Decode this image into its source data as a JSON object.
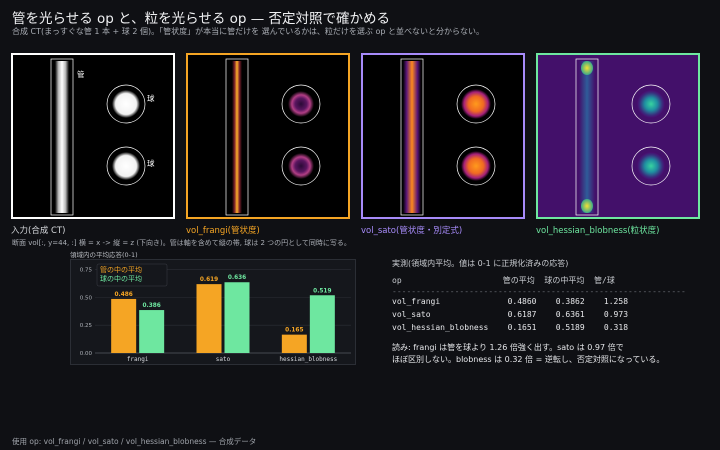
{
  "header": {
    "title": "管を光らせる op と、粒を光らせる op — 否定対照で確かめる",
    "subtitle": "合成 CT(まっすぐな管 1 本 + 球 2 個)。「管状度」が本当に管だけを 選んでいるかは、粒だけを選ぶ op と並べないと分からない。"
  },
  "panels": [
    {
      "label": "入力(合成 CT)",
      "border": "#ffffff",
      "color": "#ffffff",
      "annot_tube": "管",
      "annot_ball": "球",
      "annot_ball2": "球"
    },
    {
      "label": "vol_frangi(管状度)",
      "border": "#f5a524",
      "color": "#f5a524"
    },
    {
      "label": "vol_sato(管状度・別定式)",
      "border": "#a78bfa",
      "color": "#a78bfa"
    },
    {
      "label": "vol_hessian_blobness(粒状度)",
      "border": "#6ee7a0",
      "color": "#6ee7a0"
    }
  ],
  "note": "断面 vol[:, y=44, :]  横 = x ->   縦 = z (下向き)。管は軸を含めて縦の帯, 球は 2 つの円として同時に写る。",
  "chart_data": {
    "type": "bar",
    "title": "領域内の平均応答(0-1)",
    "categories": [
      "frangi",
      "sato",
      "hessian_blobness"
    ],
    "series": [
      {
        "name": "管の中の平均",
        "color": "#f5a524",
        "values": [
          0.486,
          0.619,
          0.165
        ]
      },
      {
        "name": "球の中の平均",
        "color": "#6ee7a0",
        "values": [
          0.386,
          0.636,
          0.519
        ]
      }
    ],
    "yticks": [
      "0.00",
      "0.25",
      "0.50",
      "0.75"
    ],
    "ylim": [
      0,
      0.8
    ],
    "grid": true,
    "legend": "top-left"
  },
  "table": {
    "title": "実測(領域内平均。値は 0-1 に正規化済みの応答)",
    "header": "op                     管の平均  球の中平均  管/球",
    "rule": "-------------------------------------------------------------",
    "rows": [
      "vol_frangi              0.4860    0.3862    1.258",
      "vol_sato                0.6187    0.6361    0.973",
      "vol_hessian_blobness    0.1651    0.5189    0.318"
    ]
  },
  "reading": [
    "読み: frangi は管を球より 1.26 倍強く出す。sato は 0.97 倍で",
    "ほぼ区別しない。blobness は 0.32 倍 = 逆転し、否定対照になっている。"
  ],
  "footer": "使用 op: vol_frangi / vol_sato / vol_hessian_blobness  — 合成データ"
}
